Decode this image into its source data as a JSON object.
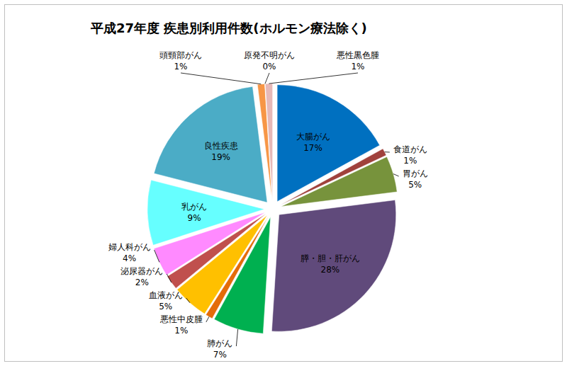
{
  "chart_data": {
    "type": "pie",
    "title": "平成27年度 疾患別利用件数(ホルモン療法除く)",
    "categories": [
      "大腸がん",
      "食道がん",
      "胃がん",
      "膵・胆・肝がん",
      "肺がん",
      "悪性中皮腫",
      "血液がん",
      "泌尿器がん",
      "婦人科がん",
      "乳がん",
      "良性疾患",
      "頭頸部がん",
      "原発不明がん",
      "悪性黒色腫"
    ],
    "values": [
      17,
      1,
      5,
      28,
      7,
      1,
      5,
      2,
      4,
      9,
      19,
      1,
      0,
      1
    ],
    "value_labels": [
      "17%",
      "1%",
      "5%",
      "28%",
      "7%",
      "1%",
      "5%",
      "2%",
      "4%",
      "9%",
      "19%",
      "1%",
      "0%",
      "1%"
    ],
    "colors": [
      "#0070c0",
      "#a0413c",
      "#77933c",
      "#604a7b",
      "#00b050",
      "#e46c0a",
      "#ffc000",
      "#c0504d",
      "#ff8aff",
      "#66ffff",
      "#4bacc6",
      "#f79646",
      "#e0a080",
      "#e6b9b8"
    ],
    "data_labels": true
  }
}
